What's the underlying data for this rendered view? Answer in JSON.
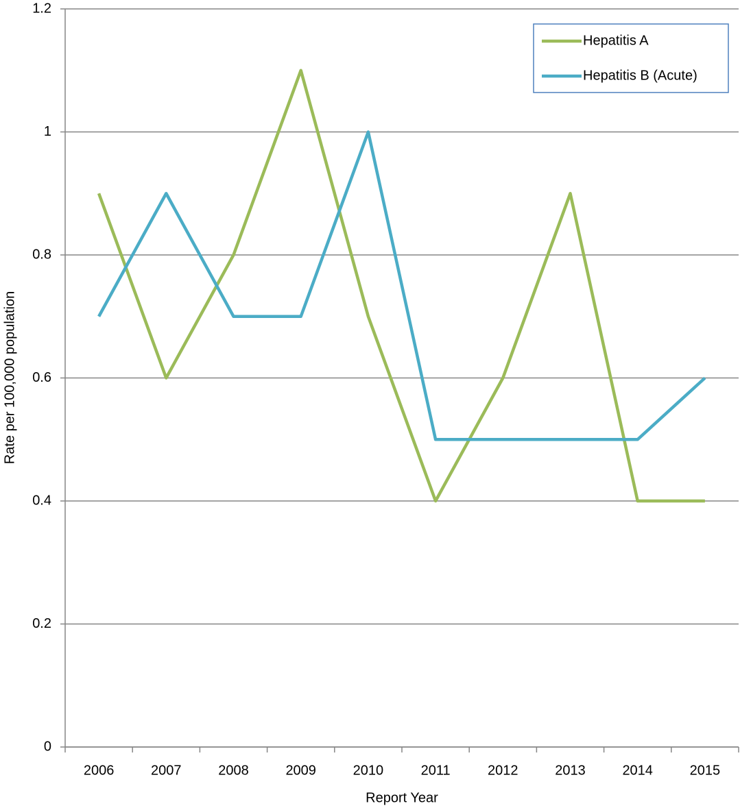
{
  "chart_data": {
    "type": "line",
    "x_label": "Report Year",
    "y_label": "Rate per 100,000 population",
    "categories": [
      "2006",
      "2007",
      "2008",
      "2009",
      "2010",
      "2011",
      "2012",
      "2013",
      "2014",
      "2015"
    ],
    "series": [
      {
        "name": "Hepatitis A",
        "color": "#9bbb59",
        "values": [
          0.9,
          0.6,
          0.8,
          1.1,
          0.7,
          0.4,
          0.6,
          0.9,
          0.4,
          0.4
        ]
      },
      {
        "name": "Hepatitis B (Acute)",
        "color": "#4bacc6",
        "values": [
          0.7,
          0.9,
          0.7,
          0.7,
          1.0,
          0.5,
          0.5,
          0.5,
          0.5,
          0.6
        ]
      }
    ],
    "ylim": [
      0,
      1.2
    ],
    "yticks": [
      0,
      0.2,
      0.4,
      0.6,
      0.8,
      1,
      1.2
    ],
    "grid": true,
    "legend": "top-right"
  }
}
